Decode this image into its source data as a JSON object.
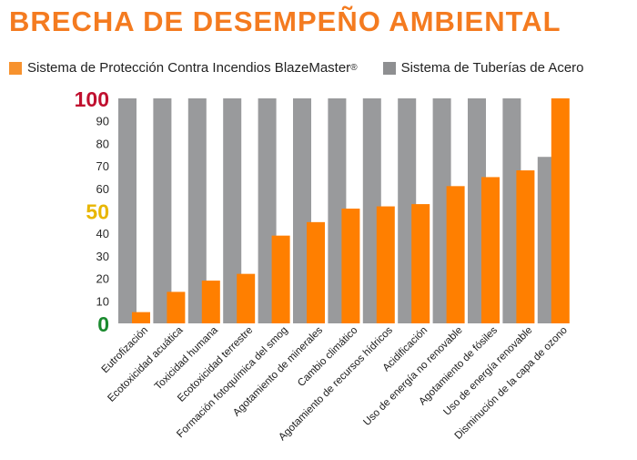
{
  "title": "BRECHA DE DESEMPEÑO AMBIENTAL",
  "colors": {
    "title": "#f47b20",
    "blazemaster": "#ff7f00",
    "steel": "#999a9c",
    "tick_100": "#c0102f",
    "tick_50": "#e8b600",
    "tick_0": "#1a8a2e"
  },
  "chart_data": {
    "type": "bar",
    "title": "BRECHA DE DESEMPEÑO AMBIENTAL",
    "xlabel": "",
    "ylabel": "",
    "ylim": [
      0,
      100
    ],
    "yticks": [
      "0",
      "10",
      "20",
      "30",
      "40",
      "50",
      "60",
      "70",
      "80",
      "90",
      "100"
    ],
    "grid": false,
    "legend_position": "top",
    "categories": [
      "Eutrofización",
      "Ecotoxicidad acuática",
      "Toxicidad humana",
      "Ecotoxicidad terrestre",
      "Formación fotoquímica del smog",
      "Agotamiento de minerales",
      "Cambio climático",
      "Agotamiento de recursos hídricos",
      "Acidificación",
      "Uso de energía no renovable",
      "Agotamiento de fósiles",
      "Uso de energía renovable",
      "Disminución de la capa de ozono"
    ],
    "series": [
      {
        "name": "Sistema de Protección Contra Incendios BlazeMaster®",
        "color": "#ff7f00",
        "values": [
          5,
          14,
          19,
          22,
          39,
          45,
          51,
          52,
          53,
          61,
          65,
          68,
          100
        ]
      },
      {
        "name": "Sistema de Tuberías de Acero",
        "color": "#999a9c",
        "values": [
          100,
          100,
          100,
          100,
          100,
          100,
          100,
          100,
          100,
          100,
          100,
          100,
          74
        ]
      }
    ]
  },
  "legend": [
    {
      "label": "Sistema de Protección Contra Incendios BlazeMaster",
      "mark": "®",
      "color": "#f7922e"
    },
    {
      "label": "Sistema de Tuberías de Acero",
      "color": "#8e8f91"
    }
  ]
}
